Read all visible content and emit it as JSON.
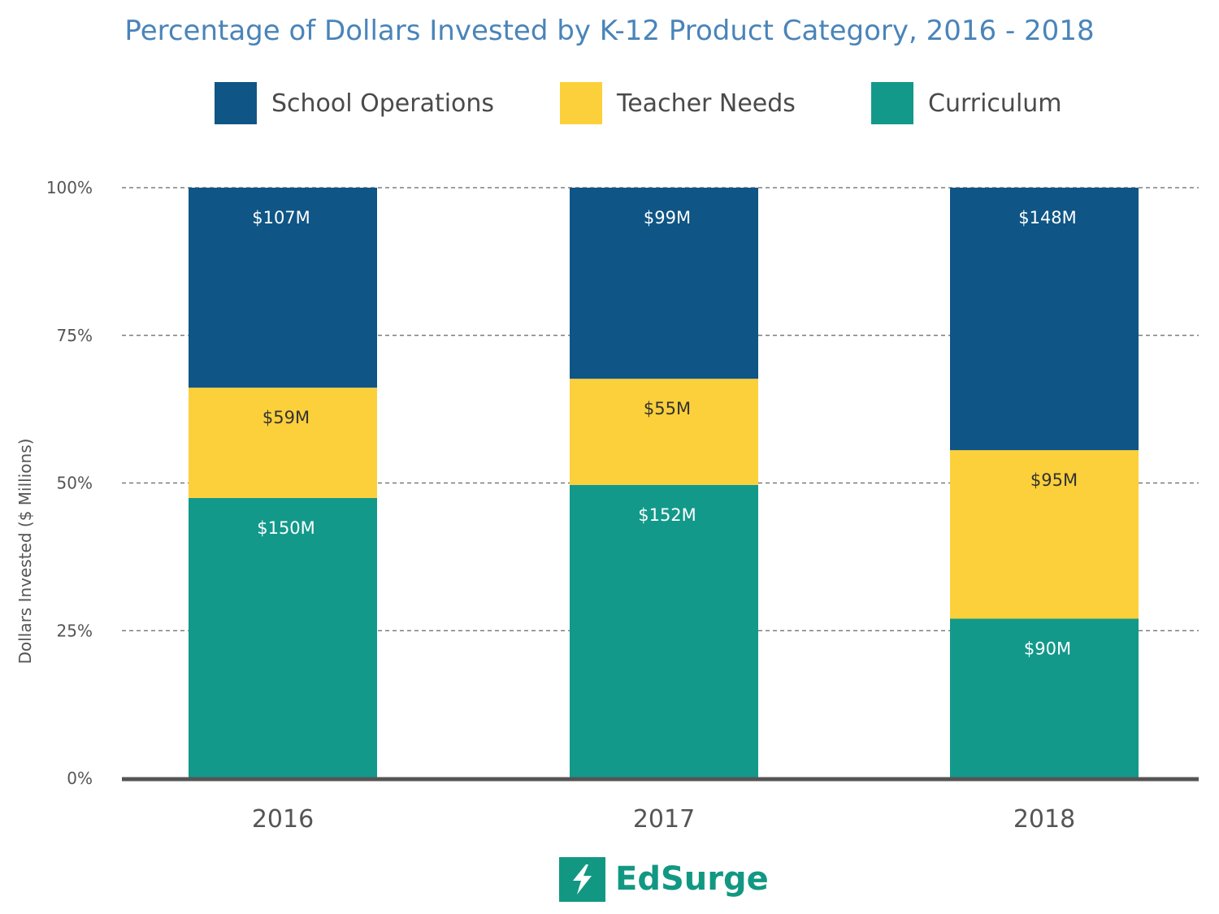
{
  "chart_data": {
    "type": "bar",
    "stacked": true,
    "normalized": true,
    "title": "Percentage of Dollars Invested by K-12 Product Category, 2016 - 2018",
    "xlabel": "",
    "ylabel": "Dollars Invested ($ Millions)",
    "ylim": [
      0,
      100
    ],
    "yticks": [
      "0%",
      "25%",
      "50%",
      "75%",
      "100%"
    ],
    "yticks_values": [
      0,
      25,
      50,
      75,
      100
    ],
    "grid": "dashed horizontal",
    "legend_position": "top",
    "categories": [
      "2016",
      "2017",
      "2018"
    ],
    "series": [
      {
        "name": "Curriculum",
        "values": [
          150,
          152,
          90
        ],
        "labels": [
          "$150M",
          "$152M",
          "$90M"
        ],
        "color": "#12998a"
      },
      {
        "name": "Teacher Needs",
        "values": [
          59,
          55,
          95
        ],
        "labels": [
          "$59M",
          "$55M",
          "$95M"
        ],
        "color": "#fcd03b"
      },
      {
        "name": "School Operations",
        "values": [
          107,
          99,
          148
        ],
        "labels": [
          "$107M",
          "$99M",
          "$148M"
        ],
        "color": "#0f5585"
      }
    ],
    "legend_order": [
      "School Operations",
      "Teacher Needs",
      "Curriculum"
    ]
  },
  "brand": {
    "name": "EdSurge",
    "color": "#129882"
  }
}
